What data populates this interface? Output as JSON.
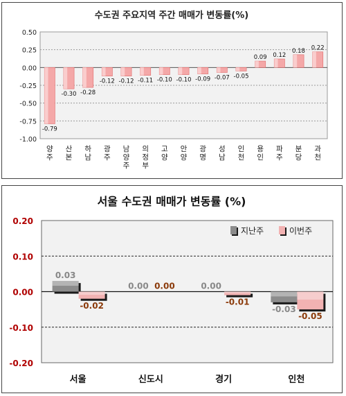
{
  "chart_data": [
    {
      "type": "bar",
      "title": "수도권 주요지역 주간 매매가 변동률(%)",
      "categories": [
        "양주",
        "산본",
        "하남",
        "광주",
        "남양주",
        "의정부",
        "고양",
        "안양",
        "광명",
        "성남",
        "인천",
        "용인",
        "파주",
        "분당",
        "과천"
      ],
      "values": [
        -0.79,
        -0.3,
        -0.28,
        -0.12,
        -0.12,
        -0.11,
        -0.1,
        -0.1,
        -0.09,
        -0.07,
        -0.05,
        0.09,
        0.12,
        0.18,
        0.22
      ],
      "value_labels": [
        "-0.79",
        "-0.30",
        "-0.28",
        "-0.12",
        "-0.12",
        "-0.11",
        "-0.10",
        "-0.10",
        "-0.09",
        "-0.07",
        "-0.05",
        "0.09",
        "0.12",
        "0.18",
        "0.22"
      ],
      "yticks": [
        "0.50",
        "0.25",
        "0.00",
        "-0.25",
        "-0.50",
        "-0.75",
        "-1.00"
      ],
      "ylim": [
        -1.0,
        0.5
      ],
      "grid": true,
      "colors": {
        "bar": "#f4a8a8",
        "bar_dark": "#e06a6a",
        "plot_bg": "#f2f2f2"
      }
    },
    {
      "type": "bar",
      "title": "서울 수도권 매매가 변동률 (%)",
      "categories": [
        "서울",
        "신도시",
        "경기",
        "인천"
      ],
      "series": [
        {
          "name": "지난주",
          "values": [
            0.03,
            0.0,
            0.0,
            -0.03
          ],
          "labels": [
            "0.03",
            "0.00",
            "0.00",
            "-0.03"
          ]
        },
        {
          "name": "이번주",
          "values": [
            -0.02,
            0.0,
            -0.01,
            -0.05
          ],
          "labels": [
            "-0.02",
            "0.00",
            "-0.01",
            "-0.05"
          ]
        }
      ],
      "yticks": [
        "0.20",
        "0.10",
        "0.00",
        "-0.10",
        "-0.20"
      ],
      "ylim": [
        -0.2,
        0.2
      ],
      "legend_position": "top-right",
      "grid": true,
      "colors": {
        "series1": "#8c8c8c",
        "series2": "#f2b2b2",
        "label1": "#888888",
        "label2": "#8b3a0a",
        "tick": "#b00000",
        "plot_bg": "#f2f2f2"
      }
    }
  ]
}
